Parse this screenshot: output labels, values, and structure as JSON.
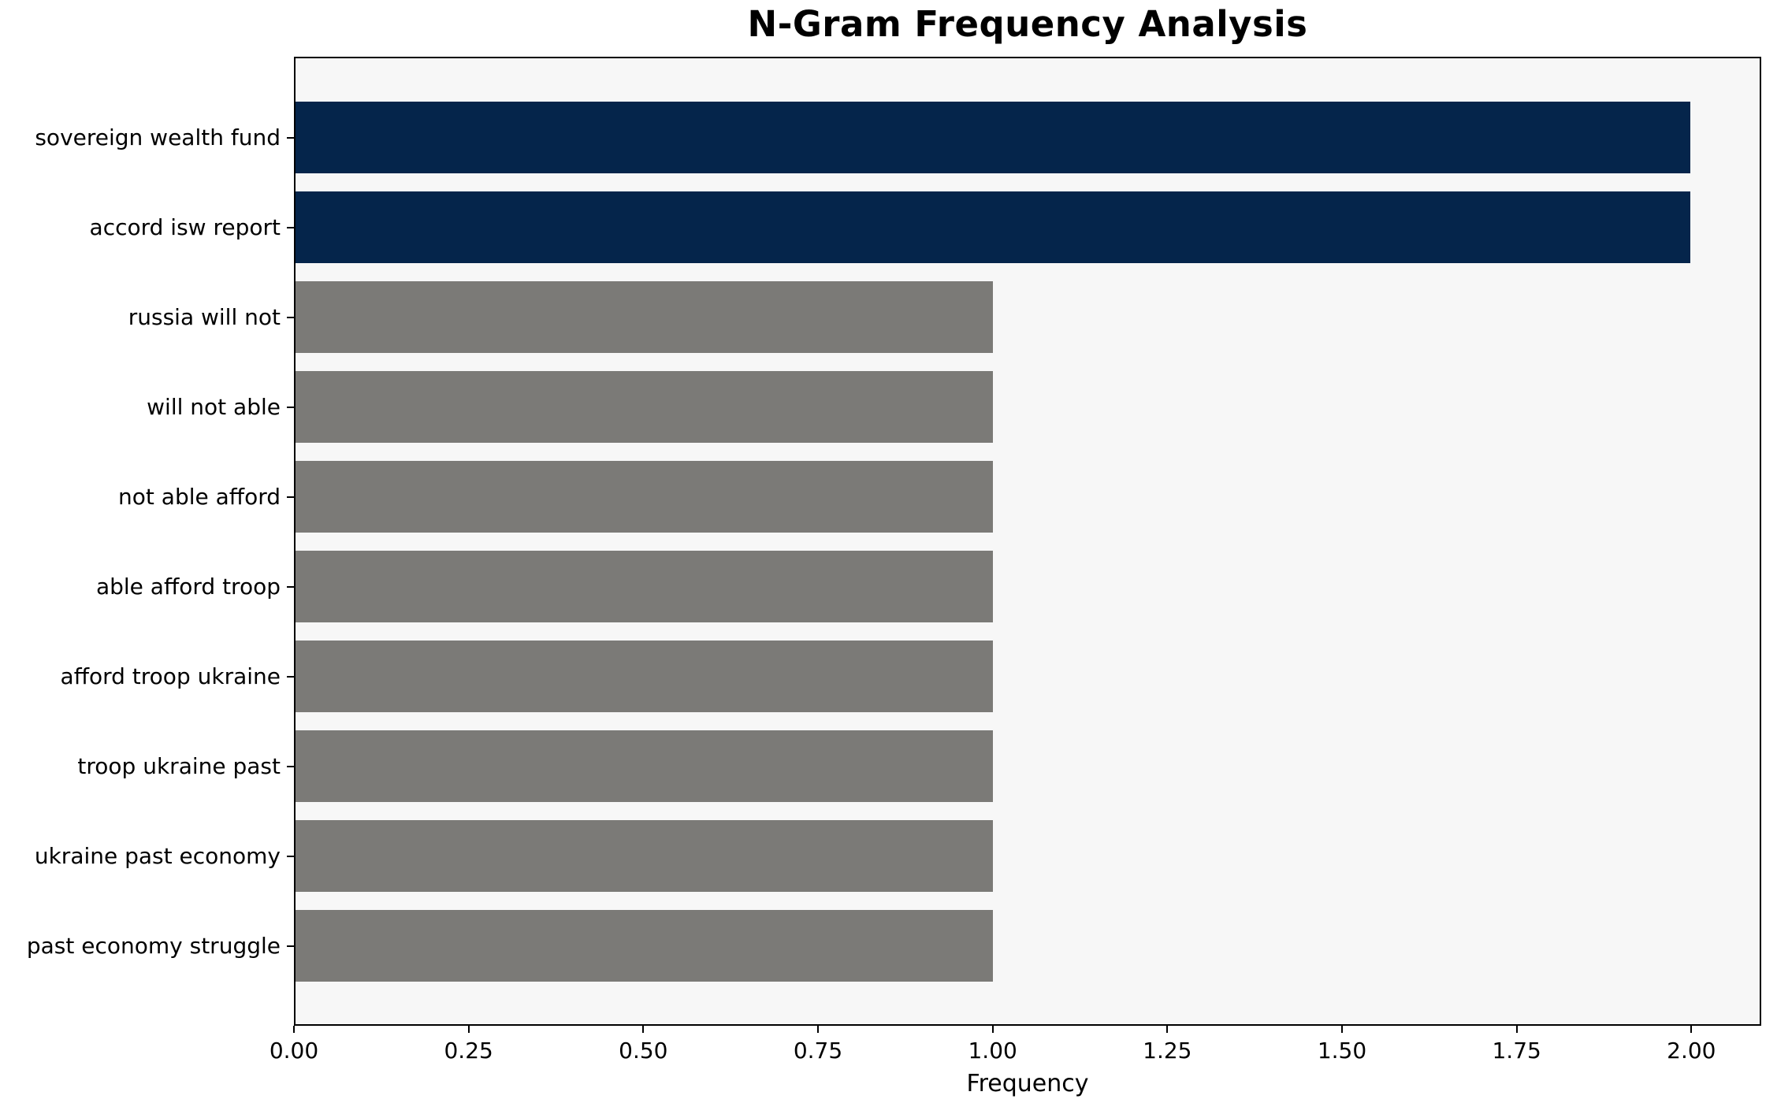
{
  "chart_data": {
    "type": "bar",
    "orientation": "horizontal",
    "title": "N-Gram Frequency Analysis",
    "xlabel": "Frequency",
    "ylabel": "",
    "categories": [
      "sovereign wealth fund",
      "accord isw report",
      "russia will not",
      "will not able",
      "not able afford",
      "able afford troop",
      "afford troop ukraine",
      "troop ukraine past",
      "ukraine past economy",
      "past economy struggle"
    ],
    "values": [
      2,
      2,
      1,
      1,
      1,
      1,
      1,
      1,
      1,
      1
    ],
    "bar_colors": [
      "#05254B",
      "#05254B",
      "#7B7A77",
      "#7B7A77",
      "#7B7A77",
      "#7B7A77",
      "#7B7A77",
      "#7B7A77",
      "#7B7A77",
      "#7B7A77"
    ],
    "x_ticks": [
      "0.00",
      "0.25",
      "0.50",
      "0.75",
      "1.00",
      "1.25",
      "1.50",
      "1.75",
      "2.00"
    ],
    "xlim": [
      0,
      2.1
    ],
    "bar_height_fraction": 0.8,
    "grid": false,
    "legend": false,
    "colors": {
      "highlight": "#05254B",
      "muted": "#7B7A77",
      "plot_background": "#F7F7F7",
      "figure_background": "#FFFFFF",
      "axis": "#000000"
    }
  }
}
